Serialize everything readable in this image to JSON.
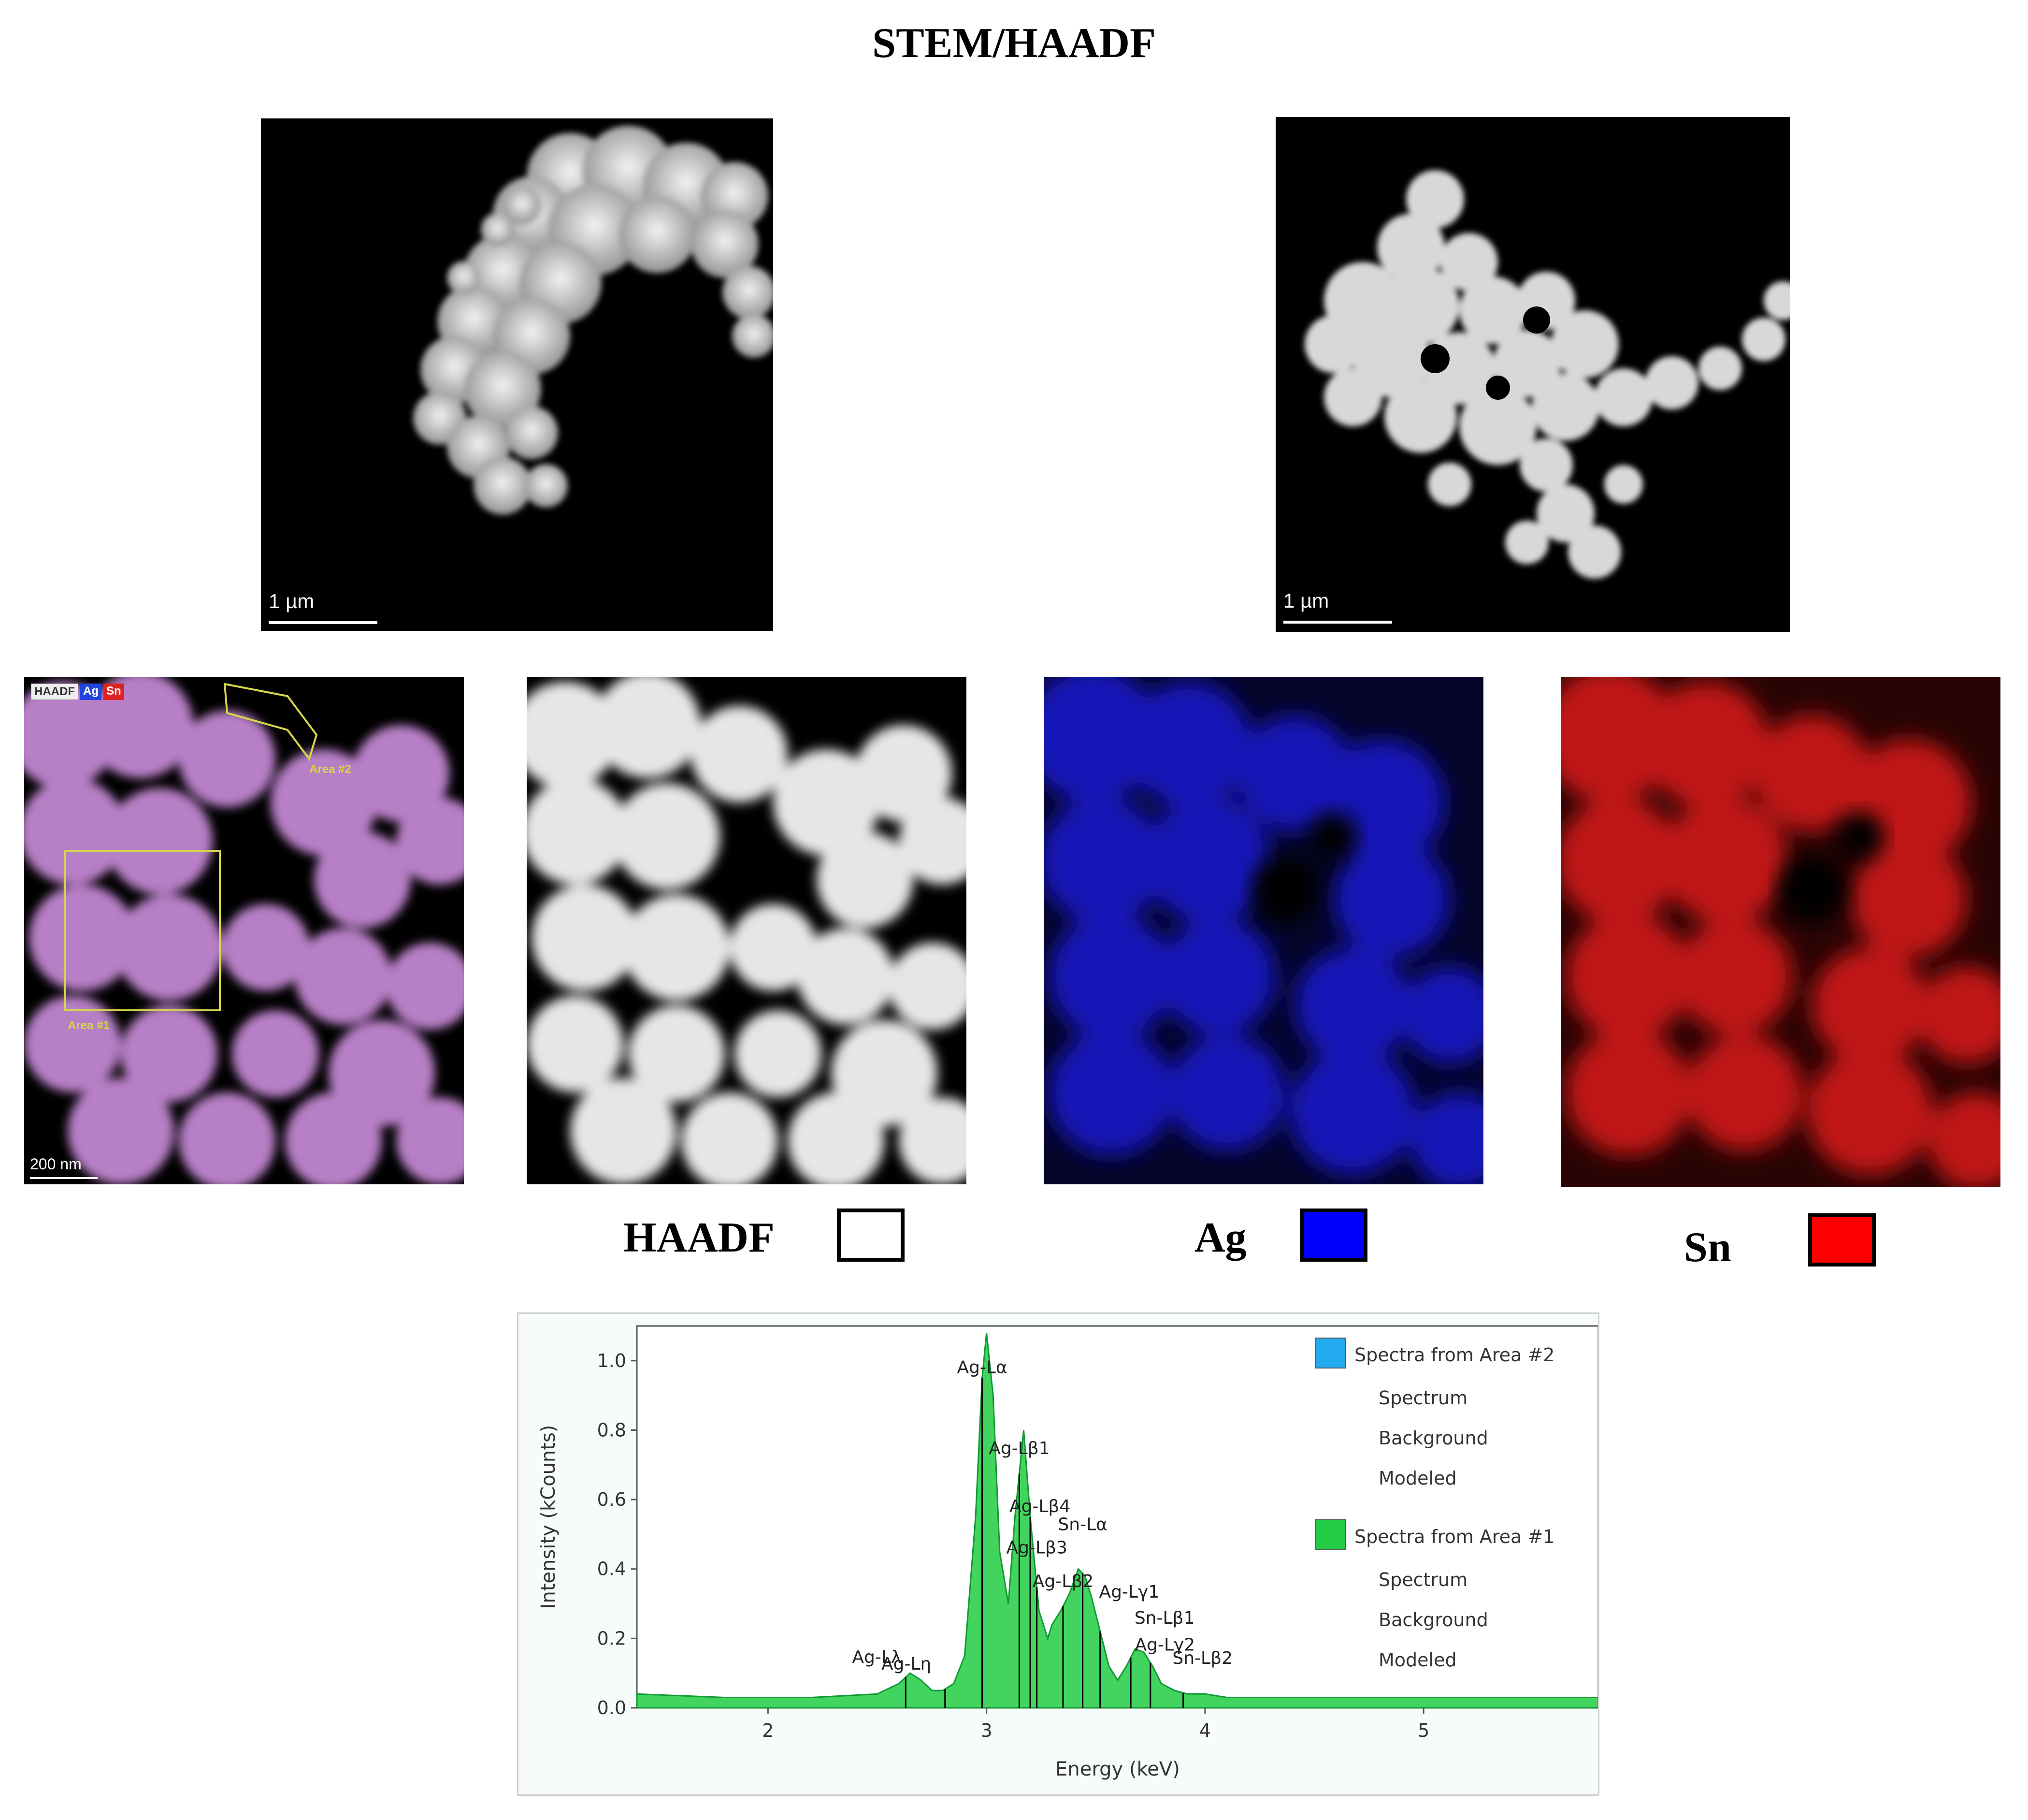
{
  "figure": {
    "title": "STEM/HAADF",
    "top_images": [
      {
        "scalebar": "1 µm"
      },
      {
        "scalebar": "1 µm"
      }
    ],
    "overlay": {
      "badges": [
        "HAADF",
        "Ag",
        "Sn"
      ],
      "area_labels": [
        "Area #2",
        "Area #1"
      ],
      "scalebar": "200 nm"
    },
    "maps": [
      {
        "label": "HAADF",
        "color": "#ffffff"
      },
      {
        "label": "Ag",
        "color": "#0000ff"
      },
      {
        "label": "Sn",
        "color": "#ff0000"
      }
    ],
    "colors": {
      "ag_map": "#1010d0",
      "sn_map": "#d01010",
      "overlay_tint": "#c070d0",
      "spectrum_fill": "#22cc44"
    }
  },
  "chart_data": {
    "type": "area",
    "xlabel": "Energy (keV)",
    "ylabel": "Intensity (kCounts)",
    "xlim": [
      1.4,
      5.8
    ],
    "ylim": [
      0,
      1.1
    ],
    "xticks": [
      "2",
      "3",
      "4",
      "5"
    ],
    "yticks": [
      "0.0",
      "0.2",
      "0.4",
      "0.6",
      "0.8",
      "1.0"
    ],
    "xtick_values": [
      2,
      3,
      4,
      5
    ],
    "ytick_values": [
      0,
      0.2,
      0.4,
      0.6,
      0.8,
      1.0
    ],
    "series": [
      {
        "name": "Spectra from Area #1",
        "x": [
          1.4,
          1.8,
          2.2,
          2.5,
          2.6,
          2.65,
          2.7,
          2.75,
          2.8,
          2.85,
          2.9,
          2.95,
          2.98,
          3.0,
          3.03,
          3.06,
          3.1,
          3.13,
          3.17,
          3.2,
          3.24,
          3.28,
          3.3,
          3.34,
          3.38,
          3.42,
          3.45,
          3.48,
          3.52,
          3.56,
          3.6,
          3.64,
          3.68,
          3.72,
          3.76,
          3.8,
          3.86,
          3.92,
          4.0,
          4.1,
          4.3,
          4.6,
          5.0,
          5.4,
          5.8
        ],
        "y": [
          0.04,
          0.03,
          0.03,
          0.04,
          0.07,
          0.1,
          0.08,
          0.05,
          0.05,
          0.07,
          0.15,
          0.55,
          0.95,
          1.08,
          0.9,
          0.45,
          0.3,
          0.55,
          0.8,
          0.55,
          0.28,
          0.2,
          0.24,
          0.28,
          0.33,
          0.4,
          0.38,
          0.32,
          0.22,
          0.12,
          0.08,
          0.12,
          0.17,
          0.16,
          0.12,
          0.07,
          0.05,
          0.04,
          0.04,
          0.03,
          0.03,
          0.03,
          0.03,
          0.03,
          0.03
        ]
      }
    ],
    "peaks": [
      {
        "label": "Ag-Lλ",
        "x": 2.63
      },
      {
        "label": "Ag-Lη",
        "x": 2.81
      },
      {
        "label": "Ag-Lα",
        "x": 2.98
      },
      {
        "label": "Ag-Lβ1",
        "x": 3.15
      },
      {
        "label": "Ag-Lβ4",
        "x": 3.2
      },
      {
        "label": "Ag-Lβ3",
        "x": 3.23
      },
      {
        "label": "Ag-Lβ2",
        "x": 3.35
      },
      {
        "label": "Sn-Lα",
        "x": 3.44
      },
      {
        "label": "Ag-Lγ1",
        "x": 3.52
      },
      {
        "label": "Sn-Lβ1",
        "x": 3.66
      },
      {
        "label": "Ag-Lγ2",
        "x": 3.75
      },
      {
        "label": "Sn-Lβ2",
        "x": 3.9
      }
    ],
    "legend": {
      "groups": [
        {
          "title": "Spectra from Area #2",
          "color": "#22aaee",
          "items": [
            "Spectrum",
            "Background",
            "Modeled"
          ]
        },
        {
          "title": "Spectra from Area #1",
          "color": "#22cc44",
          "items": [
            "Spectrum",
            "Background",
            "Modeled"
          ]
        }
      ],
      "position": "top-right"
    }
  }
}
